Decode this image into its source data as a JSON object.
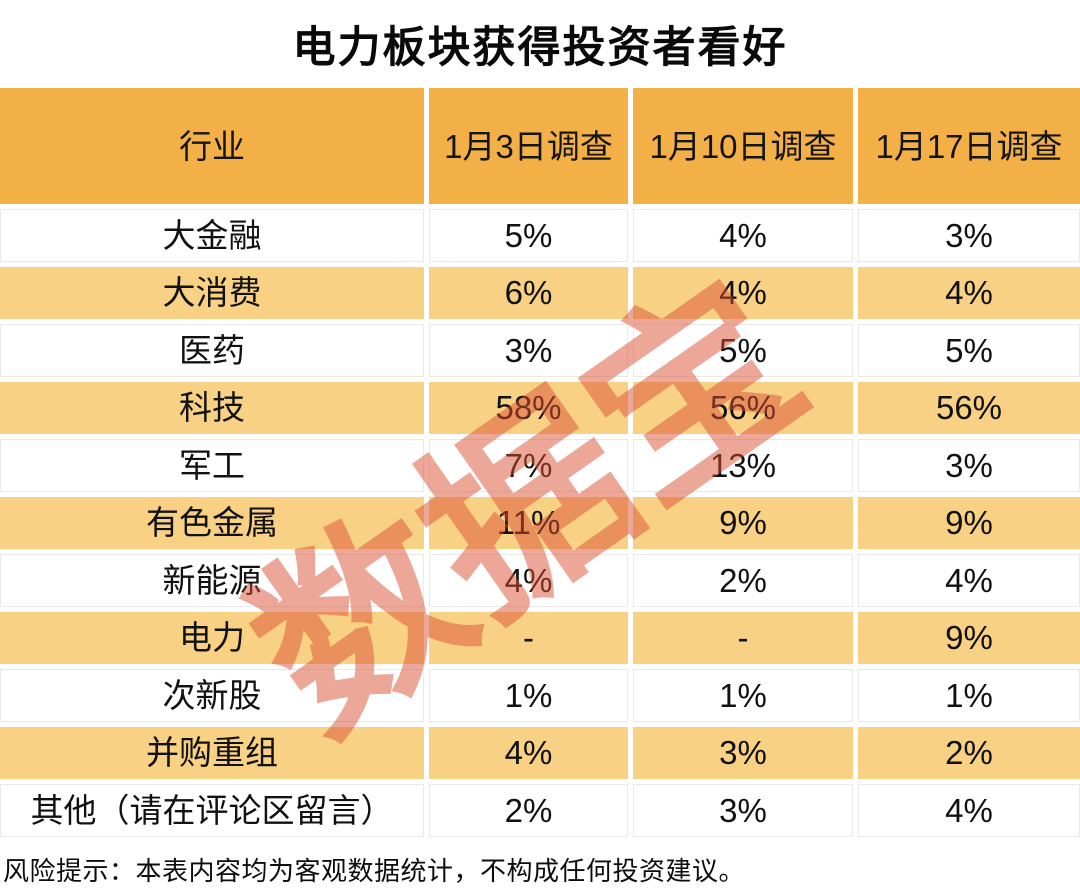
{
  "title": "电力板块获得投资者看好",
  "watermark": "数据宝",
  "footer": "风险提示：本表内容均为客观数据统计，不构成任何投资建议。",
  "chart_data": {
    "type": "table",
    "title": "电力板块获得投资者看好",
    "columns": [
      "行业",
      "1月3日调查",
      "1月10日调查",
      "1月17日调查"
    ],
    "rows": [
      [
        "大金融",
        "5%",
        "4%",
        "3%"
      ],
      [
        "大消费",
        "6%",
        "4%",
        "4%"
      ],
      [
        "医药",
        "3%",
        "5%",
        "5%"
      ],
      [
        "科技",
        "58%",
        "56%",
        "56%"
      ],
      [
        "军工",
        "7%",
        "13%",
        "3%"
      ],
      [
        "有色金属",
        "11%",
        "9%",
        "9%"
      ],
      [
        "新能源",
        "4%",
        "2%",
        "4%"
      ],
      [
        "电力",
        "-",
        "-",
        "9%"
      ],
      [
        "次新股",
        "1%",
        "1%",
        "1%"
      ],
      [
        "并购重组",
        "4%",
        "3%",
        "2%"
      ],
      [
        "其他（请在评论区留言）",
        "2%",
        "3%",
        "4%"
      ]
    ],
    "layout_hints": {
      "row_striping": "rows alternate white then light orange, starting white",
      "header_row": "solid orange background",
      "values_format": "percent"
    }
  },
  "colors": {
    "header-bg": "#F2B046",
    "row-alt-bg": "#F8D184",
    "row-bg": "#FFFFFF",
    "text": "#111111",
    "watermark": "rgba(219,80,51,0.5)",
    "hairline": "#E9E9E9"
  }
}
